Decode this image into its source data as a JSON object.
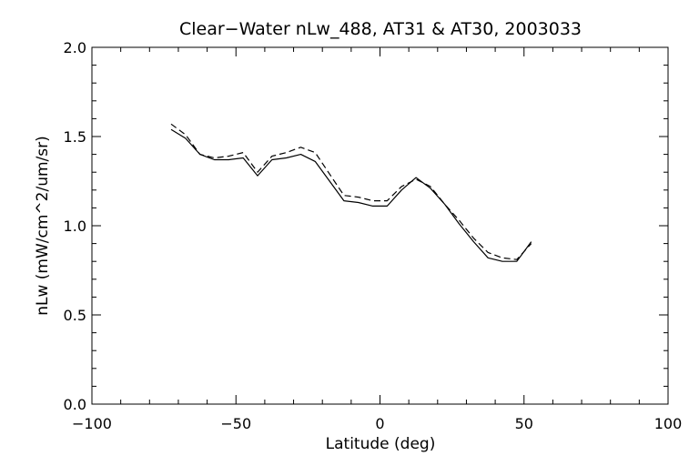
{
  "chart_data": {
    "type": "line",
    "title": "Clear−Water nLw_488, AT31 & AT30, 2003033",
    "xlabel": "Latitude (deg)",
    "ylabel": "nLw (mW/cm^2/um/sr)",
    "xlim": [
      -100,
      100
    ],
    "ylim": [
      0.0,
      2.0
    ],
    "xticks": [
      -100,
      -50,
      0,
      50,
      100
    ],
    "xtick_labels": [
      "−100",
      "−50",
      "0",
      "50",
      "100"
    ],
    "yticks": [
      0.0,
      0.5,
      1.0,
      1.5,
      2.0
    ],
    "ytick_labels": [
      "0.0",
      "0.5",
      "1.0",
      "1.5",
      "2.0"
    ],
    "grid": false,
    "series": [
      {
        "style": "solid",
        "color": "#000000",
        "x": [
          -72.5,
          -67.5,
          -62.5,
          -57.5,
          -52.5,
          -47.5,
          -42.5,
          -37.5,
          -32.5,
          -27.5,
          -22.5,
          -17.5,
          -12.5,
          -7.5,
          -2.5,
          2.5,
          7.5,
          12.5,
          17.5,
          22.5,
          27.5,
          32.5,
          37.5,
          42.5,
          47.5,
          52.5
        ],
        "y": [
          1.54,
          1.49,
          1.4,
          1.37,
          1.37,
          1.38,
          1.28,
          1.37,
          1.38,
          1.4,
          1.36,
          1.25,
          1.14,
          1.13,
          1.11,
          1.11,
          1.2,
          1.27,
          1.21,
          1.12,
          1.01,
          0.91,
          0.82,
          0.8,
          0.8,
          0.91
        ]
      },
      {
        "style": "dashed",
        "color": "#000000",
        "x": [
          -72.5,
          -67.5,
          -62.5,
          -57.5,
          -52.5,
          -47.5,
          -42.5,
          -37.5,
          -32.5,
          -27.5,
          -22.5,
          -17.5,
          -12.5,
          -7.5,
          -2.5,
          2.5,
          7.5,
          12.5,
          17.5,
          22.5,
          27.5,
          32.5,
          37.5,
          42.5,
          47.5,
          52.5
        ],
        "y": [
          1.57,
          1.51,
          1.4,
          1.38,
          1.39,
          1.41,
          1.3,
          1.39,
          1.41,
          1.44,
          1.41,
          1.29,
          1.17,
          1.16,
          1.14,
          1.14,
          1.22,
          1.26,
          1.22,
          1.12,
          1.03,
          0.93,
          0.85,
          0.82,
          0.81,
          0.9
        ]
      }
    ]
  }
}
